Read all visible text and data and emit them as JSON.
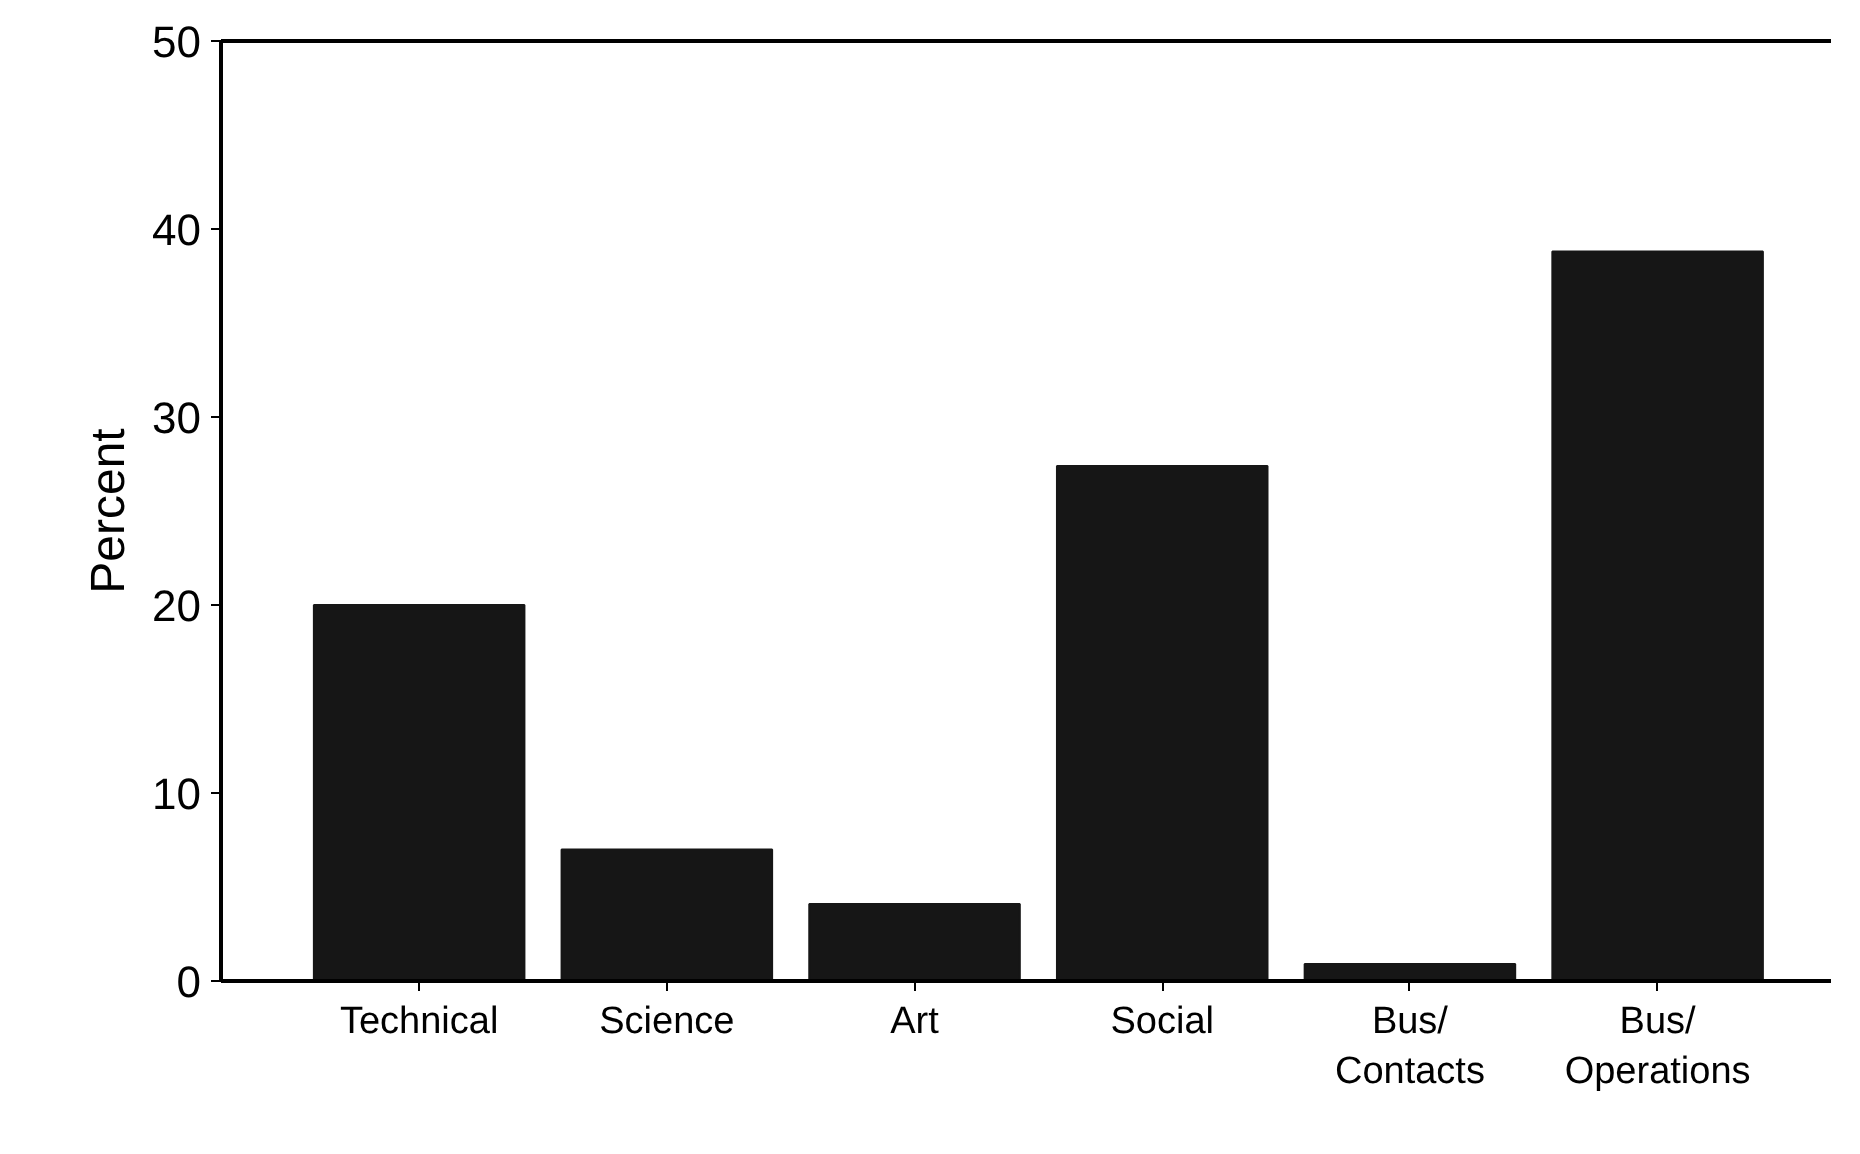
{
  "chart_data": {
    "type": "bar",
    "ylabel": "Percent",
    "categories": [
      "Technical",
      "Science",
      "Art",
      "Social",
      "Bus/\nContacts",
      "Bus/\nOperations"
    ],
    "values": [
      20,
      7.0,
      4.1,
      27.4,
      0.9,
      38.8
    ],
    "color": "#161616",
    "ylim": [
      0,
      50
    ],
    "yticks": [
      0,
      10,
      20,
      30,
      40,
      50
    ],
    "grid": false
  }
}
